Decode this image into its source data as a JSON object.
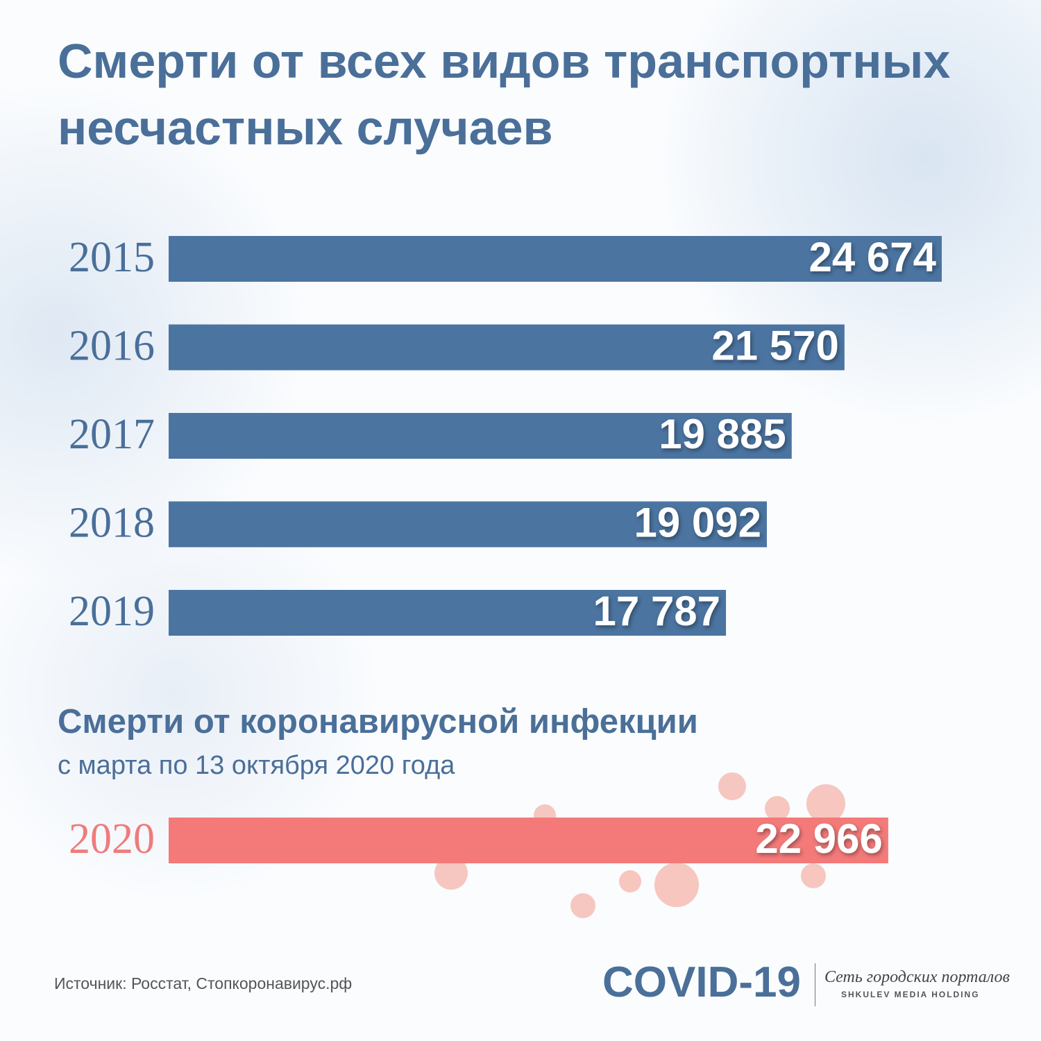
{
  "chart_data": [
    {
      "type": "bar",
      "orientation": "horizontal",
      "title": "Смерти от всех видов транспортных несчастных случаев",
      "categories": [
        "2015",
        "2016",
        "2017",
        "2018",
        "2019"
      ],
      "values": [
        24674,
        21570,
        19885,
        19092,
        17787
      ],
      "value_labels": [
        "24 674",
        "21 570",
        "19 885",
        "19 092",
        "17 787"
      ],
      "color": "#4b74a0",
      "label_color": "#4a6f99"
    },
    {
      "type": "bar",
      "orientation": "horizontal",
      "title": "Смерти от коронавирусной инфекции",
      "subtitle": "с марта по 13 октября 2020 года",
      "categories": [
        "2020"
      ],
      "values": [
        22966
      ],
      "value_labels": [
        "22 966"
      ],
      "color": "#f47a7a",
      "label_color": "#ef7b7b"
    }
  ],
  "source": "Источник: Росстат, Стопкоронавирус.рф",
  "logo": {
    "text": "COVID-19",
    "tagline": "Сеть городских порталов",
    "holding": "SHKULEV MEDIA HOLDING"
  }
}
